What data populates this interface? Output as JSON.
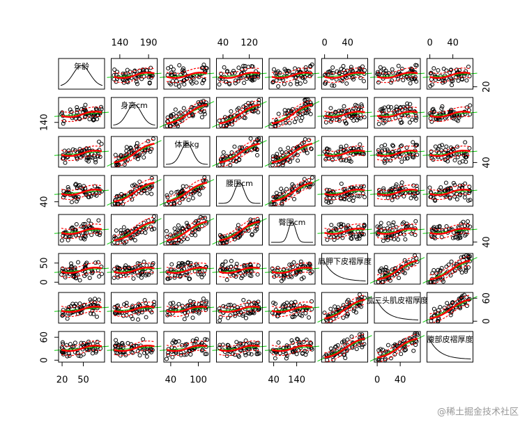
{
  "chart_data": {
    "type": "scatter_matrix",
    "variables": [
      {
        "name": "年龄",
        "lim": [
          15,
          80
        ],
        "col_ticks": [
          20,
          50
        ],
        "row_ticks": [
          20
        ]
      },
      {
        "name": "身高cm",
        "lim": [
          125,
          205
        ],
        "col_ticks": [
          140,
          190
        ],
        "row_ticks": [
          140
        ]
      },
      {
        "name": "体重kg",
        "lim": [
          25,
          125
        ],
        "col_ticks": [
          40,
          100
        ],
        "row_ticks": [
          40
        ]
      },
      {
        "name": "腰围cm",
        "lim": [
          20,
          160
        ],
        "col_ticks": [
          40,
          120
        ],
        "row_ticks": [
          40
        ]
      },
      {
        "name": "臀围cm",
        "lim": [
          20,
          220
        ],
        "col_ticks": [
          40,
          140
        ],
        "row_ticks": [
          40
        ]
      },
      {
        "name": "肩胛下皮褶厚度",
        "lim": [
          -5,
          75
        ],
        "col_ticks": [
          0,
          40
        ],
        "row_ticks": [
          0,
          50
        ]
      },
      {
        "name": "肱三头肌皮褶厚度",
        "lim": [
          -5,
          75
        ],
        "col_ticks": [
          0,
          40
        ],
        "row_ticks": [
          0,
          60
        ]
      },
      {
        "name": "腹部皮褶厚度",
        "lim": [
          -5,
          75
        ],
        "col_ticks": [
          0,
          40
        ],
        "row_ticks": [
          0,
          60
        ]
      }
    ],
    "point_color": "#000000",
    "fit_color": "#00cc00",
    "smooth_color": "#ff0000",
    "watermark": "@稀土掘金技术社区"
  }
}
